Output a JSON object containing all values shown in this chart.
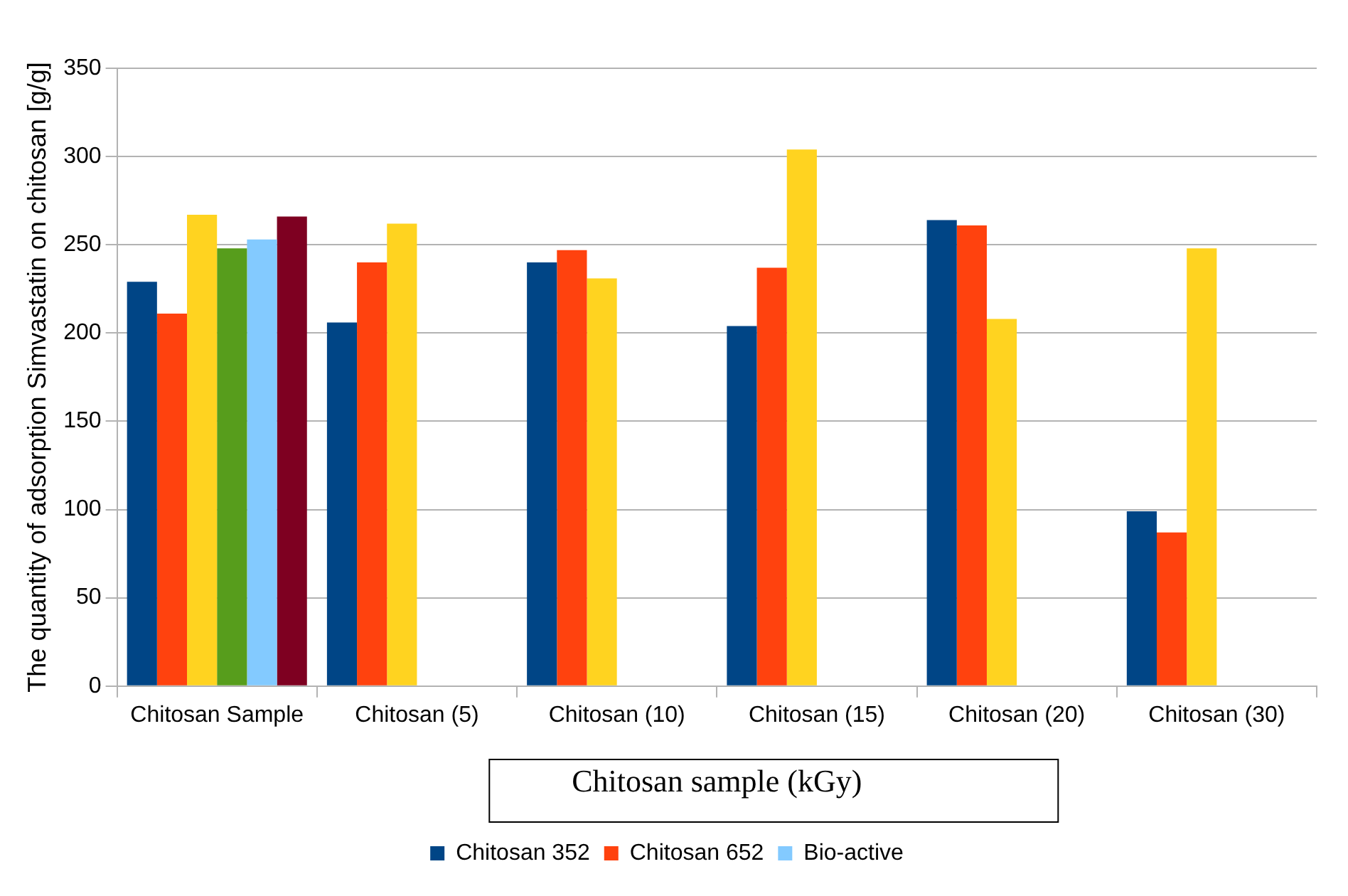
{
  "chart_data": {
    "type": "bar",
    "xlabel": "Chitosan sample (kGy)",
    "ylabel": "The quantity of adsorption Simvastatin on chitosan [g/g]",
    "categories": [
      "Chitosan Sample",
      "Chitosan (5)",
      "Chitosan (10)",
      "Chitosan (15)",
      "Chitosan (20)",
      "Chitosan (30)"
    ],
    "series": [
      {
        "name": "Chitosan 352",
        "color": "#004586",
        "values": [
          229,
          206,
          240,
          204,
          264,
          99
        ]
      },
      {
        "name": "Chitosan 652",
        "color": "#ff420e",
        "values": [
          211,
          240,
          247,
          237,
          261,
          87
        ]
      },
      {
        "color": "#ffd320",
        "values": [
          267,
          262,
          231,
          304,
          208,
          248
        ]
      },
      {
        "color": "#579d1c",
        "values": [
          248,
          null,
          null,
          null,
          null,
          null
        ]
      },
      {
        "name": "Bio-active",
        "color": "#83caff",
        "values": [
          253,
          null,
          null,
          null,
          null,
          null
        ]
      },
      {
        "color": "#7e0021",
        "values": [
          266,
          null,
          null,
          null,
          null,
          null
        ]
      }
    ],
    "ylim": [
      0,
      350
    ],
    "yticks": [
      0,
      50,
      100,
      150,
      200,
      250,
      300,
      350
    ],
    "grid": "y",
    "legend": "bottom"
  }
}
